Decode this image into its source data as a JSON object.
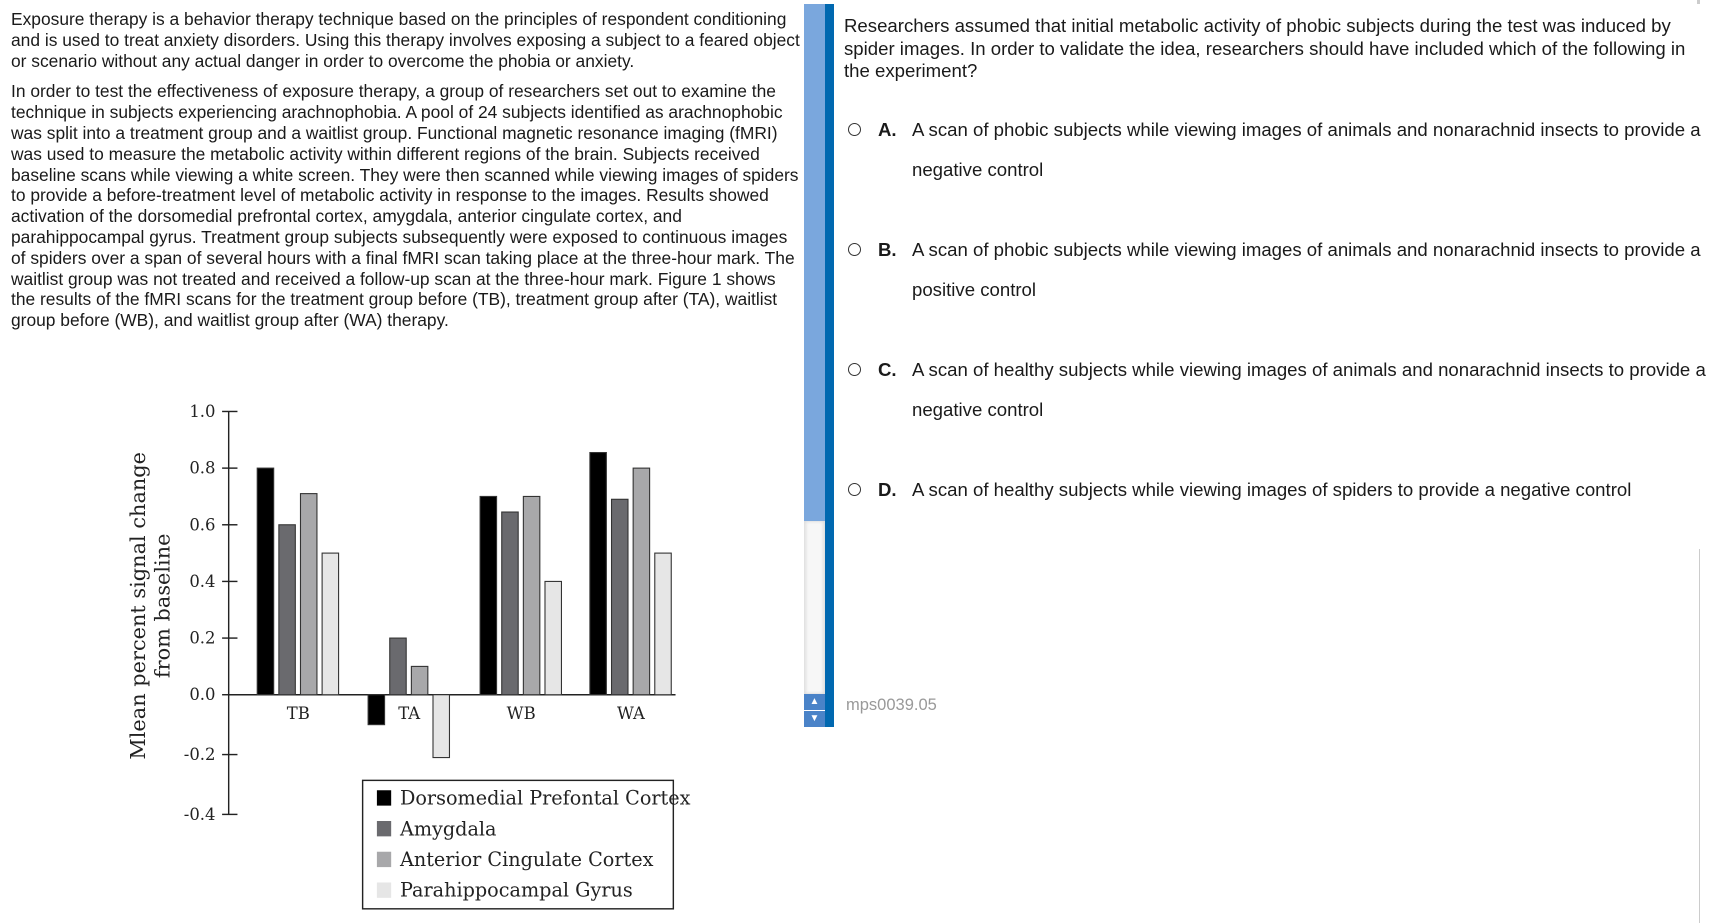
{
  "passage": {
    "paragraphs": [
      "Exposure therapy is a behavior therapy technique based on the principles of respondent conditioning and is used to treat anxiety disorders. Using this therapy involves exposing a subject to a feared object or scenario without any actual danger in order to overcome the phobia or anxiety.",
      "In order to test the effectiveness of exposure therapy, a group of researchers set out to examine the technique in subjects experiencing arachnophobia. A pool of 24 subjects identified as arachnophobic was split into a treatment group and a waitlist group. Functional magnetic resonance imaging (fMRI) was used to measure the metabolic activity within different regions of the brain. Subjects received baseline scans while viewing a white screen. They were then scanned while viewing images of spiders to provide a before-treatment level of metabolic activity in response to the images. Results showed activation of the dorsomedial prefrontal cortex, amygdala, anterior cingulate cortex, and parahippocampal gyrus. Treatment group subjects subsequently were exposed to continuous images of spiders over a span of several hours with a final fMRI scan taking place at the three-hour mark. The waitlist group was not treated and received a follow-up scan at the three-hour mark. Figure 1 shows the results of the fMRI scans for the treatment group before (TB), treatment group after (TA), waitlist group before (WB), and waitlist group after (WA) therapy."
    ]
  },
  "chart_data": {
    "type": "bar",
    "categories": [
      "TB",
      "TA",
      "WB",
      "WA"
    ],
    "ylabel_lines": [
      "Mlean percent signal change",
      "from baseline"
    ],
    "ylim": [
      -0.4,
      1.0
    ],
    "yticks": [
      "1.0",
      "0.8",
      "0.6",
      "0.4",
      "0.2",
      "0.0",
      "-0.2",
      "-0.4"
    ],
    "ytick_values": [
      1.0,
      0.8,
      0.6,
      0.4,
      0.2,
      0.0,
      -0.2,
      -0.4
    ],
    "grid": false,
    "legend_position": "bottom-right",
    "series": [
      {
        "name": "Dorsomedial Prefontal Cortex",
        "color": "#000000",
        "values": [
          0.8,
          -0.1,
          0.7,
          0.855
        ]
      },
      {
        "name": "Amygdala",
        "color": "#6a6a6e",
        "values": [
          0.6,
          0.2,
          0.645,
          0.69
        ]
      },
      {
        "name": "Anterior Cingulate Cortex",
        "color": "#a8a8aa",
        "values": [
          0.71,
          0.1,
          0.7,
          0.8
        ]
      },
      {
        "name": "Parahippocampal Gyrus",
        "color": "#e6e6e6",
        "values": [
          0.5,
          -0.21,
          0.4,
          0.5
        ]
      }
    ]
  },
  "question": {
    "text": "Researchers assumed that initial metabolic activity of phobic subjects during the test was induced by spider images. In order to validate the idea, researchers should have included which of the following in the experiment?",
    "options": [
      {
        "letter": "A.",
        "text": "A scan of phobic subjects while viewing images of animals and nonarachnid insects to provide a negative control"
      },
      {
        "letter": "B.",
        "text": "A scan of phobic subjects while viewing images of animals and nonarachnid insects to provide a positive control"
      },
      {
        "letter": "C.",
        "text": "A scan of healthy subjects while viewing images of animals and nonarachnid insects to provide a negative control"
      },
      {
        "letter": "D.",
        "text": "A scan of healthy subjects while viewing images of spiders to provide a negative control"
      }
    ],
    "code": "mps0039.05"
  },
  "scrollbar": {
    "up_icon": "▲",
    "down_icon": "▼",
    "accent": "#0068b0"
  }
}
